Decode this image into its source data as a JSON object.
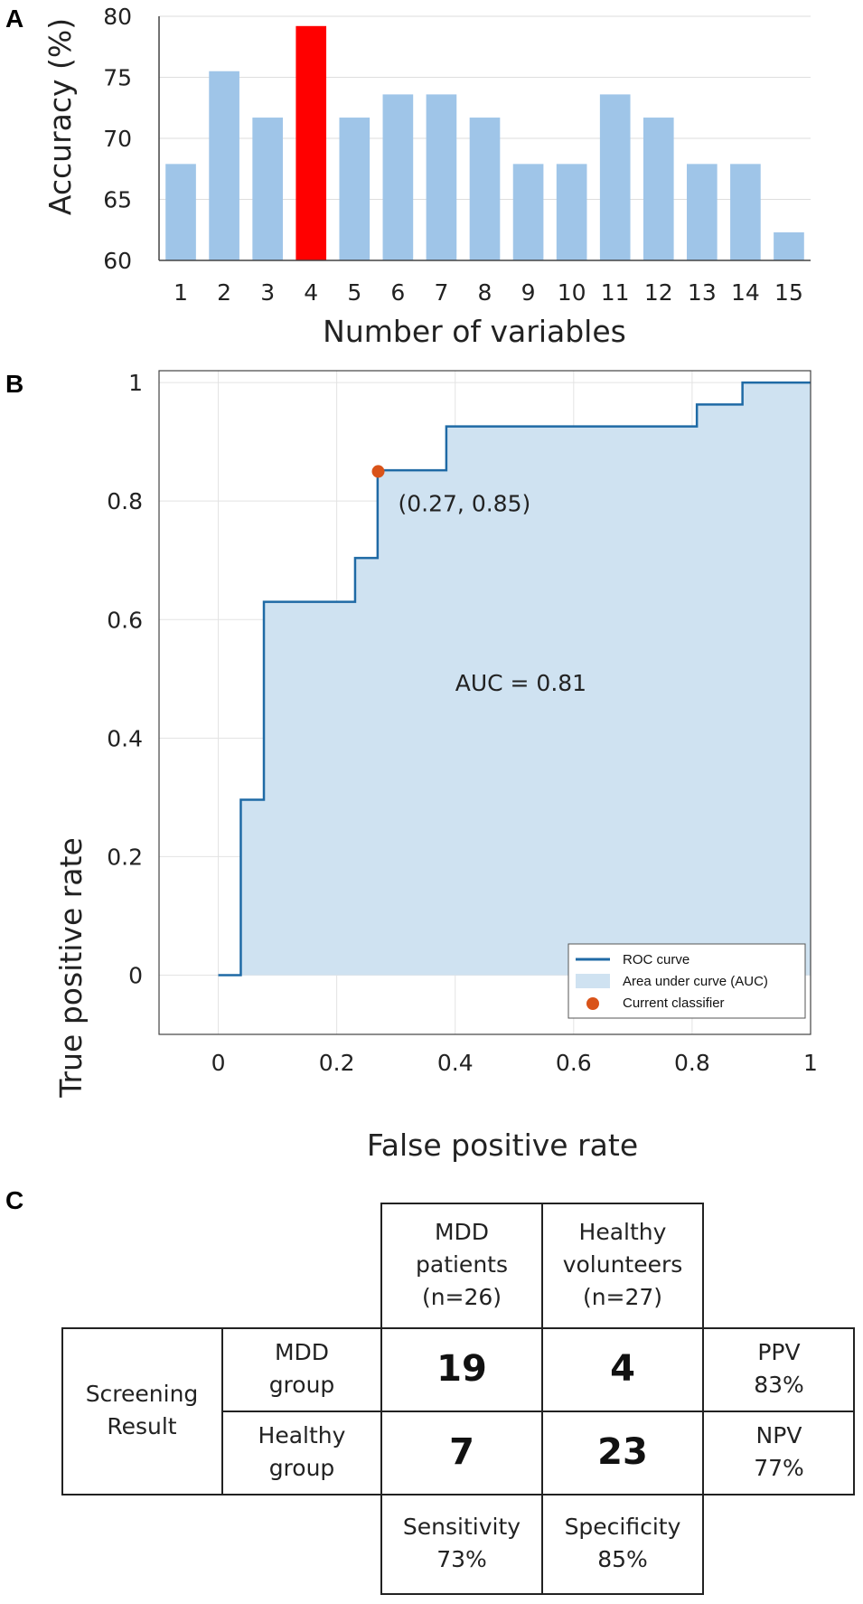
{
  "panels": {
    "a": "A",
    "b": "B",
    "c": "C"
  },
  "chart_data": [
    {
      "type": "bar",
      "title": "",
      "xlabel": "Number of variables",
      "ylabel": "Accuracy (%)",
      "categories": [
        "1",
        "2",
        "3",
        "4",
        "5",
        "6",
        "7",
        "8",
        "9",
        "10",
        "11",
        "12",
        "13",
        "14",
        "15"
      ],
      "values": [
        67.9,
        75.5,
        71.7,
        79.2,
        71.7,
        73.6,
        73.6,
        71.7,
        67.9,
        67.9,
        73.6,
        71.7,
        67.9,
        67.9,
        62.3
      ],
      "highlight_index": 3,
      "bar_color": "#9fc5e8",
      "highlight_color": "#ff0000",
      "ylim": [
        60,
        80
      ],
      "yticks": [
        "60",
        "65",
        "70",
        "75",
        "80"
      ],
      "grid": true
    },
    {
      "type": "line",
      "title": "",
      "xlabel": "False positive rate",
      "ylabel": "True positive rate",
      "xlim": [
        -0.1,
        1
      ],
      "ylim": [
        -0.1,
        1.02
      ],
      "xticks": [
        "0",
        "0.2",
        "0.4",
        "0.6",
        "0.8",
        "1"
      ],
      "yticks": [
        "0",
        "0.2",
        "0.4",
        "0.6",
        "0.8",
        "1"
      ],
      "grid": true,
      "roc_points": [
        [
          0,
          0
        ],
        [
          0.038,
          0
        ],
        [
          0.038,
          0.296
        ],
        [
          0.077,
          0.296
        ],
        [
          0.077,
          0.63
        ],
        [
          0.231,
          0.63
        ],
        [
          0.231,
          0.704
        ],
        [
          0.269,
          0.704
        ],
        [
          0.269,
          0.852
        ],
        [
          0.385,
          0.852
        ],
        [
          0.385,
          0.926
        ],
        [
          0.808,
          0.926
        ],
        [
          0.808,
          0.963
        ],
        [
          0.885,
          0.963
        ],
        [
          0.885,
          1
        ],
        [
          1,
          1
        ]
      ],
      "current_classifier": [
        0.27,
        0.85
      ],
      "point_label": "(0.27, 0.85)",
      "auc_label": "AUC = 0.81",
      "line_color": "#1f6aa5",
      "fill_color": "#cfe2f1",
      "point_color": "#d95319",
      "legend": {
        "position": "bottom-right",
        "entries": [
          "ROC curve",
          "Area under curve (AUC)",
          "Current classifier"
        ]
      }
    }
  ],
  "table": {
    "col_headers": [
      [
        "MDD",
        "patients",
        "(n=26)"
      ],
      [
        "Healthy",
        "volunteers",
        "(n=27)"
      ]
    ],
    "row_group": [
      "Screening",
      "Result"
    ],
    "rows": [
      {
        "label": [
          "MDD",
          "group"
        ],
        "values": [
          "19",
          "4"
        ],
        "metric": [
          "PPV",
          "83%"
        ]
      },
      {
        "label": [
          "Healthy",
          "group"
        ],
        "values": [
          "7",
          "23"
        ],
        "metric": [
          "NPV",
          "77%"
        ]
      }
    ],
    "bottom": [
      [
        "Sensitivity",
        "73%"
      ],
      [
        "Specificity",
        "85%"
      ]
    ]
  }
}
